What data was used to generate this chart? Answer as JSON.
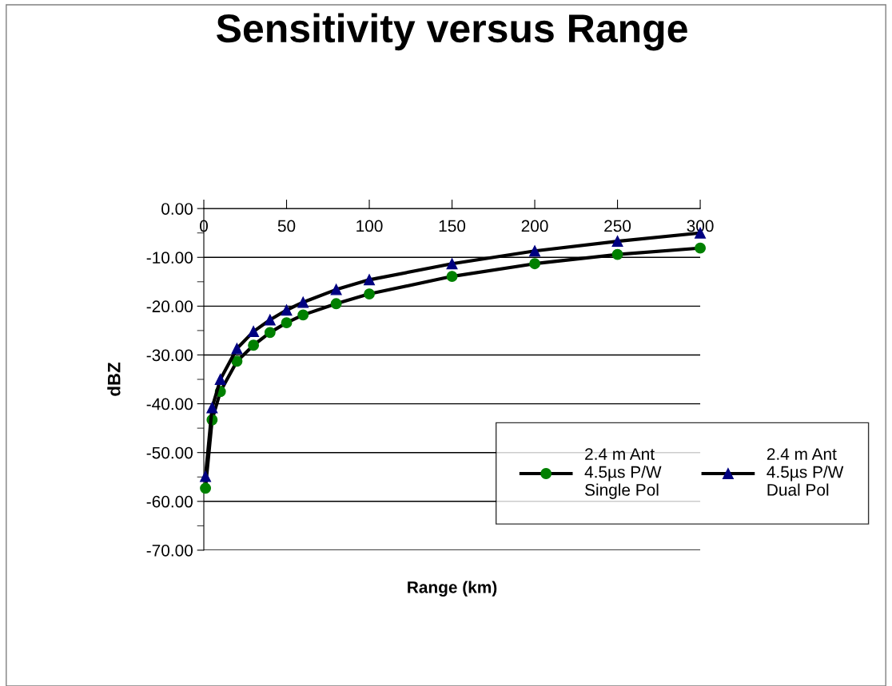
{
  "chart_data": {
    "type": "line",
    "title": "Sensitivity versus Range",
    "xlabel": "Range (km)",
    "ylabel": "dBZ",
    "x": [
      1,
      5,
      10,
      20,
      30,
      40,
      50,
      60,
      80,
      100,
      150,
      200,
      250,
      300
    ],
    "series": [
      {
        "name": "2.4 m Ant\n4.5µs P/W\nSingle Pol",
        "color": "#008000",
        "marker": "circle",
        "values": [
          -57.3,
          -43.3,
          -37.5,
          -31.3,
          -28.0,
          -25.4,
          -23.4,
          -21.8,
          -19.5,
          -17.5,
          -13.9,
          -11.3,
          -9.4,
          -8.1
        ]
      },
      {
        "name": "2.4 m Ant\n4.5µs P/W\nDual Pol",
        "color": "#000080",
        "marker": "triangle",
        "values": [
          -54.9,
          -40.8,
          -35.0,
          -28.7,
          -25.2,
          -22.8,
          -20.8,
          -19.2,
          -16.6,
          -14.6,
          -11.3,
          -8.7,
          -6.7,
          -5.0
        ]
      }
    ],
    "xlim": [
      0,
      300
    ],
    "xticks": [
      0,
      50,
      100,
      150,
      200,
      250,
      300
    ],
    "ylim": [
      -70,
      0
    ],
    "yticks": [
      {
        "value": 0,
        "label": "0.00"
      },
      {
        "value": -10,
        "label": "-10.00"
      },
      {
        "value": -20,
        "label": "-20.00"
      },
      {
        "value": -30,
        "label": "-30.00"
      },
      {
        "value": -40,
        "label": "-40.00"
      },
      {
        "value": -50,
        "label": "-50.00"
      },
      {
        "value": -60,
        "label": "-60.00"
      },
      {
        "value": -70,
        "label": "-70.00"
      }
    ],
    "grid": "y",
    "legend": "bottom right",
    "line_style": "solid"
  }
}
